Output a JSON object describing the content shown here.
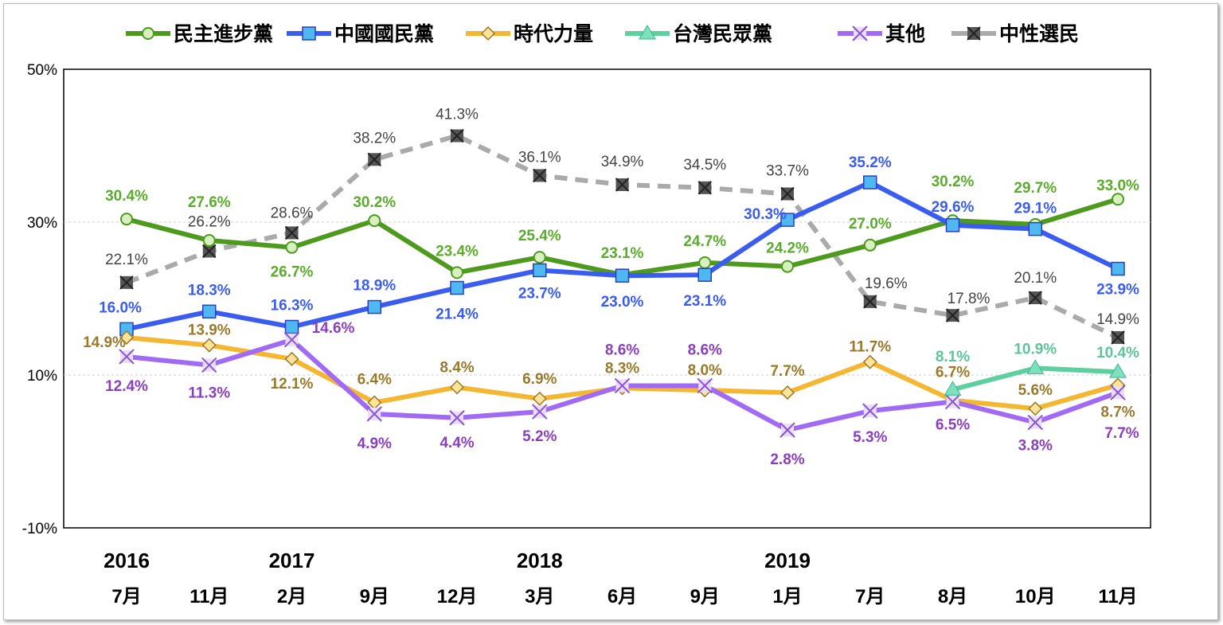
{
  "chart_data": {
    "type": "line",
    "categories": [
      "7月",
      "11月",
      "2月",
      "9月",
      "12月",
      "3月",
      "6月",
      "9月",
      "1月",
      "7月",
      "8月",
      "10月",
      "11月"
    ],
    "years": [
      {
        "label": "2016",
        "index": 0
      },
      {
        "label": "2017",
        "index": 2
      },
      {
        "label": "2018",
        "index": 5
      },
      {
        "label": "2019",
        "index": 8
      }
    ],
    "ylim": [
      -10,
      50
    ],
    "yticks": [
      50,
      30,
      10,
      -10
    ],
    "ytick_labels": [
      "50%",
      "30%",
      "10%",
      "-10%"
    ],
    "grid": "dashed at 30% and 10%",
    "legend": "top",
    "series": [
      {
        "name": "民主進步黨",
        "color": "#4e9a1e",
        "label_color": "#5aad2a",
        "marker": "circle",
        "values": [
          30.4,
          27.6,
          26.7,
          30.2,
          23.4,
          25.4,
          23.1,
          24.7,
          24.2,
          27.0,
          30.2,
          29.7,
          33.0
        ]
      },
      {
        "name": "中國國民黨",
        "color": "#3a5cf0",
        "label_color": "#3a5cf0",
        "marker": "square",
        "values": [
          16.0,
          18.3,
          16.3,
          18.9,
          21.4,
          23.7,
          23.0,
          23.1,
          30.3,
          35.2,
          29.6,
          29.1,
          23.9
        ]
      },
      {
        "name": "時代力量",
        "color": "#f5b731",
        "label_color": "#9a7a2a",
        "marker": "diamond",
        "values": [
          14.9,
          13.9,
          12.1,
          6.4,
          8.4,
          6.9,
          8.3,
          8.0,
          7.7,
          11.7,
          6.7,
          5.6,
          8.7
        ]
      },
      {
        "name": "台灣民眾黨",
        "color": "#5ecf9e",
        "label_color": "#5ec49a",
        "marker": "triangle",
        "values": [
          null,
          null,
          null,
          null,
          null,
          null,
          null,
          null,
          null,
          null,
          8.1,
          10.9,
          10.4
        ]
      },
      {
        "name": "其他",
        "color": "#a06af5",
        "label_color": "#8a3fc0",
        "marker": "x",
        "values": [
          12.4,
          11.3,
          14.6,
          4.9,
          4.4,
          5.2,
          8.6,
          8.6,
          2.8,
          5.3,
          6.5,
          3.8,
          7.7
        ]
      },
      {
        "name": "中性選民",
        "color": "#aaaaaa",
        "label_color": "#444444",
        "marker": "xbox",
        "values": [
          22.1,
          26.2,
          28.6,
          38.2,
          41.3,
          36.1,
          34.9,
          34.5,
          33.7,
          19.6,
          17.8,
          20.1,
          14.9
        ]
      }
    ]
  }
}
